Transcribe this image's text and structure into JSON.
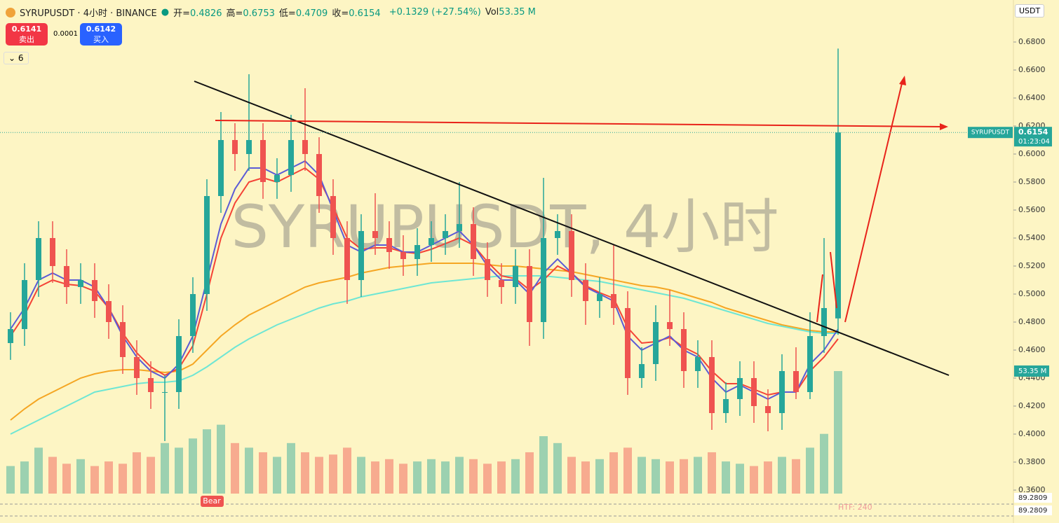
{
  "header": {
    "symbol": "SYRUPUSDT · 4小时 · BINANCE",
    "ohlc": [
      {
        "label": "开=",
        "value": "0.4826"
      },
      {
        "label": "高=",
        "value": "0.6753"
      },
      {
        "label": "低=",
        "value": "0.4709"
      },
      {
        "label": "收=",
        "value": "0.6154"
      }
    ],
    "change": "+0.1329 (+27.54%)",
    "vol_label": "Vol",
    "vol_value": "53.35 M",
    "sell_price": "0.6141",
    "sell_label": "卖出",
    "spread": "0.0001",
    "buy_price": "0.6142",
    "buy_label": "买入",
    "indicator_count": "6",
    "currency": "USDT"
  },
  "chart_data": {
    "type": "candlestick",
    "watermark": "SYRUPUSDT, 4小时",
    "ylim": [
      0.3365,
      0.71
    ],
    "yticks": [
      {
        "value": 0.68,
        "label": "0.6800"
      },
      {
        "value": 0.66,
        "label": "0.6600"
      },
      {
        "value": 0.64,
        "label": "0.6400"
      },
      {
        "value": 0.62,
        "label": "0.6200"
      },
      {
        "value": 0.6,
        "label": "0.6000"
      },
      {
        "value": 0.58,
        "label": "0.5800"
      },
      {
        "value": 0.56,
        "label": "0.5600"
      },
      {
        "value": 0.54,
        "label": "0.5400"
      },
      {
        "value": 0.52,
        "label": "0.5200"
      },
      {
        "value": 0.5,
        "label": "0.5000"
      },
      {
        "value": 0.48,
        "label": "0.4800"
      },
      {
        "value": 0.46,
        "label": "0.4600"
      },
      {
        "value": 0.44,
        "label": "0.4400"
      },
      {
        "value": 0.42,
        "label": "0.4200"
      },
      {
        "value": 0.4,
        "label": "0.4000"
      },
      {
        "value": 0.38,
        "label": "0.3800"
      },
      {
        "value": 0.36,
        "label": "0.3600"
      }
    ],
    "up_color": "#26a69a",
    "down_color": "#ef5350",
    "open": [
      0.465,
      0.475,
      0.51,
      0.54,
      0.52,
      0.505,
      0.51,
      0.495,
      0.48,
      0.455,
      0.44,
      0.43,
      0.43,
      0.47,
      0.5,
      0.57,
      0.61,
      0.6,
      0.61,
      0.58,
      0.585,
      0.61,
      0.6,
      0.57,
      0.54,
      0.51,
      0.545,
      0.54,
      0.53,
      0.525,
      0.535,
      0.54,
      0.545,
      0.55,
      0.525,
      0.51,
      0.505,
      0.52,
      0.48,
      0.54,
      0.545,
      0.51,
      0.495,
      0.5,
      0.49,
      0.44,
      0.45,
      0.48,
      0.475,
      0.445,
      0.455,
      0.415,
      0.425,
      0.44,
      0.42,
      0.415,
      0.445,
      0.43,
      0.47,
      0.4826
    ],
    "high": [
      0.487,
      0.522,
      0.552,
      0.552,
      0.532,
      0.522,
      0.522,
      0.507,
      0.492,
      0.467,
      0.452,
      0.442,
      0.482,
      0.512,
      0.582,
      0.63,
      0.622,
      0.657,
      0.622,
      0.597,
      0.628,
      0.647,
      0.612,
      0.582,
      0.552,
      0.557,
      0.572,
      0.552,
      0.542,
      0.547,
      0.552,
      0.557,
      0.58,
      0.562,
      0.537,
      0.522,
      0.532,
      0.532,
      0.583,
      0.557,
      0.557,
      0.522,
      0.512,
      0.535,
      0.502,
      0.462,
      0.492,
      0.503,
      0.487,
      0.467,
      0.467,
      0.437,
      0.452,
      0.452,
      0.432,
      0.457,
      0.462,
      0.487,
      0.54,
      0.6753
    ],
    "low": [
      0.453,
      0.463,
      0.498,
      0.508,
      0.493,
      0.493,
      0.483,
      0.468,
      0.443,
      0.428,
      0.418,
      0.395,
      0.418,
      0.458,
      0.488,
      0.558,
      0.588,
      0.588,
      0.568,
      0.568,
      0.573,
      0.588,
      0.558,
      0.528,
      0.493,
      0.498,
      0.528,
      0.518,
      0.513,
      0.513,
      0.523,
      0.528,
      0.533,
      0.513,
      0.498,
      0.493,
      0.493,
      0.463,
      0.468,
      0.528,
      0.498,
      0.478,
      0.483,
      0.478,
      0.428,
      0.433,
      0.438,
      0.463,
      0.433,
      0.433,
      0.403,
      0.408,
      0.413,
      0.408,
      0.402,
      0.403,
      0.425,
      0.425,
      0.458,
      0.4709
    ],
    "close": [
      0.475,
      0.51,
      0.54,
      0.52,
      0.505,
      0.51,
      0.495,
      0.48,
      0.455,
      0.44,
      0.43,
      0.43,
      0.47,
      0.5,
      0.57,
      0.61,
      0.6,
      0.61,
      0.58,
      0.585,
      0.61,
      0.6,
      0.57,
      0.54,
      0.51,
      0.545,
      0.54,
      0.53,
      0.525,
      0.535,
      0.54,
      0.545,
      0.55,
      0.525,
      0.51,
      0.505,
      0.52,
      0.48,
      0.54,
      0.545,
      0.51,
      0.495,
      0.5,
      0.49,
      0.44,
      0.45,
      0.48,
      0.475,
      0.445,
      0.455,
      0.415,
      0.425,
      0.44,
      0.42,
      0.415,
      0.445,
      0.43,
      0.47,
      0.49,
      0.6154
    ],
    "volume": [
      12,
      14,
      20,
      16,
      13,
      15,
      12,
      14,
      13,
      18,
      16,
      22,
      20,
      24,
      28,
      30,
      22,
      20,
      18,
      16,
      22,
      18,
      16,
      17,
      20,
      16,
      14,
      15,
      13,
      14,
      15,
      14,
      16,
      15,
      13,
      14,
      15,
      18,
      25,
      22,
      16,
      14,
      15,
      18,
      20,
      16,
      15,
      14,
      15,
      16,
      18,
      14,
      13,
      12,
      14,
      16,
      15,
      20,
      26,
      53.35
    ],
    "volume_label": "53.35 M",
    "series": [
      {
        "color": "#f5a623",
        "values": [
          0.41,
          0.418,
          0.425,
          0.43,
          0.435,
          0.44,
          0.443,
          0.445,
          0.446,
          0.446,
          0.445,
          0.444,
          0.445,
          0.45,
          0.46,
          0.47,
          0.478,
          0.485,
          0.49,
          0.495,
          0.5,
          0.505,
          0.508,
          0.51,
          0.512,
          0.515,
          0.517,
          0.519,
          0.52,
          0.521,
          0.522,
          0.522,
          0.522,
          0.522,
          0.521,
          0.52,
          0.52,
          0.519,
          0.518,
          0.517,
          0.516,
          0.514,
          0.512,
          0.51,
          0.508,
          0.506,
          0.505,
          0.503,
          0.5,
          0.497,
          0.494,
          0.49,
          0.487,
          0.484,
          0.481,
          0.478,
          0.476,
          0.474,
          0.473,
          0.473
        ]
      },
      {
        "color": "#6ee6d4",
        "values": [
          0.4,
          0.405,
          0.41,
          0.415,
          0.42,
          0.425,
          0.43,
          0.432,
          0.434,
          0.436,
          0.437,
          0.437,
          0.438,
          0.442,
          0.448,
          0.455,
          0.462,
          0.468,
          0.473,
          0.478,
          0.482,
          0.486,
          0.49,
          0.493,
          0.495,
          0.498,
          0.5,
          0.502,
          0.504,
          0.506,
          0.508,
          0.509,
          0.51,
          0.511,
          0.512,
          0.513,
          0.513,
          0.513,
          0.513,
          0.512,
          0.511,
          0.51,
          0.509,
          0.507,
          0.505,
          0.503,
          0.501,
          0.499,
          0.497,
          0.494,
          0.491,
          0.488,
          0.485,
          0.482,
          0.479,
          0.477,
          0.475,
          0.473,
          0.472,
          0.472
        ]
      },
      {
        "color": "#f44336",
        "values": [
          0.47,
          0.485,
          0.505,
          0.51,
          0.507,
          0.506,
          0.502,
          0.49,
          0.472,
          0.458,
          0.448,
          0.442,
          0.447,
          0.463,
          0.5,
          0.54,
          0.565,
          0.58,
          0.583,
          0.58,
          0.585,
          0.59,
          0.582,
          0.562,
          0.54,
          0.532,
          0.533,
          0.533,
          0.53,
          0.529,
          0.532,
          0.536,
          0.54,
          0.535,
          0.523,
          0.513,
          0.511,
          0.503,
          0.51,
          0.52,
          0.515,
          0.506,
          0.501,
          0.497,
          0.476,
          0.465,
          0.466,
          0.469,
          0.462,
          0.457,
          0.445,
          0.436,
          0.436,
          0.432,
          0.428,
          0.43,
          0.43,
          0.445,
          0.455,
          0.468
        ]
      },
      {
        "color": "#5b5bd6",
        "values": [
          0.475,
          0.49,
          0.51,
          0.515,
          0.51,
          0.51,
          0.505,
          0.49,
          0.47,
          0.455,
          0.445,
          0.44,
          0.45,
          0.47,
          0.51,
          0.55,
          0.575,
          0.59,
          0.59,
          0.585,
          0.59,
          0.595,
          0.585,
          0.56,
          0.535,
          0.53,
          0.535,
          0.535,
          0.53,
          0.53,
          0.535,
          0.54,
          0.545,
          0.535,
          0.52,
          0.51,
          0.51,
          0.5,
          0.515,
          0.525,
          0.515,
          0.505,
          0.5,
          0.495,
          0.47,
          0.46,
          0.465,
          0.47,
          0.46,
          0.455,
          0.44,
          0.43,
          0.435,
          0.43,
          0.425,
          0.43,
          0.43,
          0.45,
          0.46,
          0.475
        ]
      }
    ],
    "last_symbol": "SYRUPUSDT",
    "last_price": {
      "value": 0.6154,
      "label": "0.6154"
    },
    "countdown": "01:23:04",
    "indicator": {
      "values": [
        {
          "value": 89.2809,
          "label": "89.2809"
        },
        {
          "value": 89.2809,
          "label": "89.2809"
        }
      ],
      "bear_label": "Bear",
      "htf_label": "HTF: 240"
    }
  }
}
